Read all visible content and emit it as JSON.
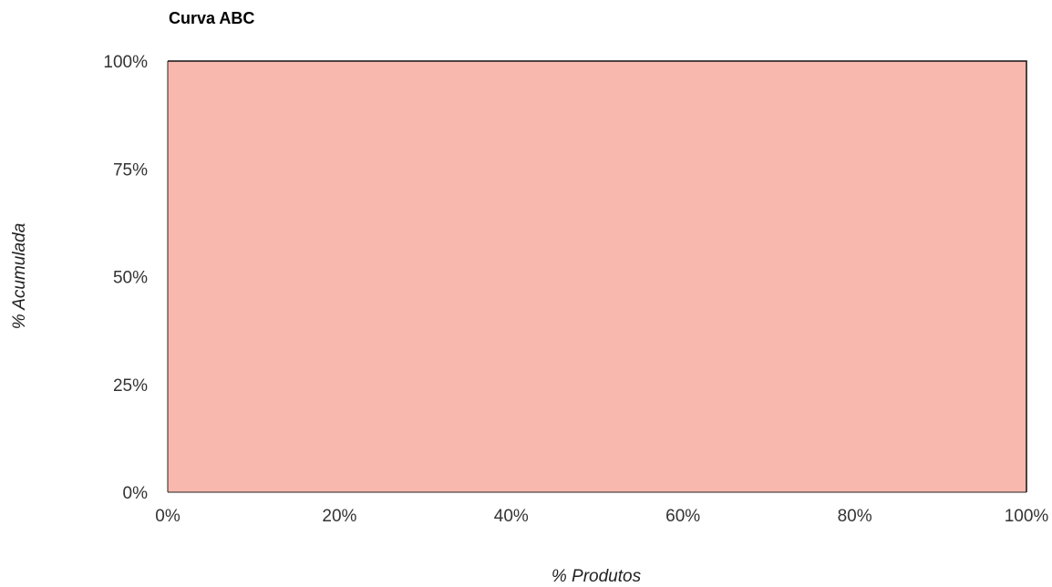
{
  "chart_data": {
    "type": "area",
    "title": "Curva ABC",
    "xlabel": "% Produtos",
    "ylabel": "% Acumulada",
    "xlim": [
      0,
      100
    ],
    "ylim": [
      0,
      100
    ],
    "x_ticks": [
      "0%",
      "20%",
      "40%",
      "60%",
      "80%",
      "100%"
    ],
    "x_tick_values": [
      0,
      20,
      40,
      60,
      80,
      100
    ],
    "y_ticks": [
      "0%",
      "25%",
      "50%",
      "75%",
      "100%"
    ],
    "y_tick_values": [
      0,
      25,
      50,
      75,
      100
    ],
    "series": [
      {
        "x": [
          0,
          0,
          100,
          100
        ],
        "y": [
          0,
          100,
          100,
          0
        ],
        "fill_color": "#F9B8AE",
        "line_color": "#111111"
      }
    ],
    "grid": false,
    "legend": "none"
  }
}
